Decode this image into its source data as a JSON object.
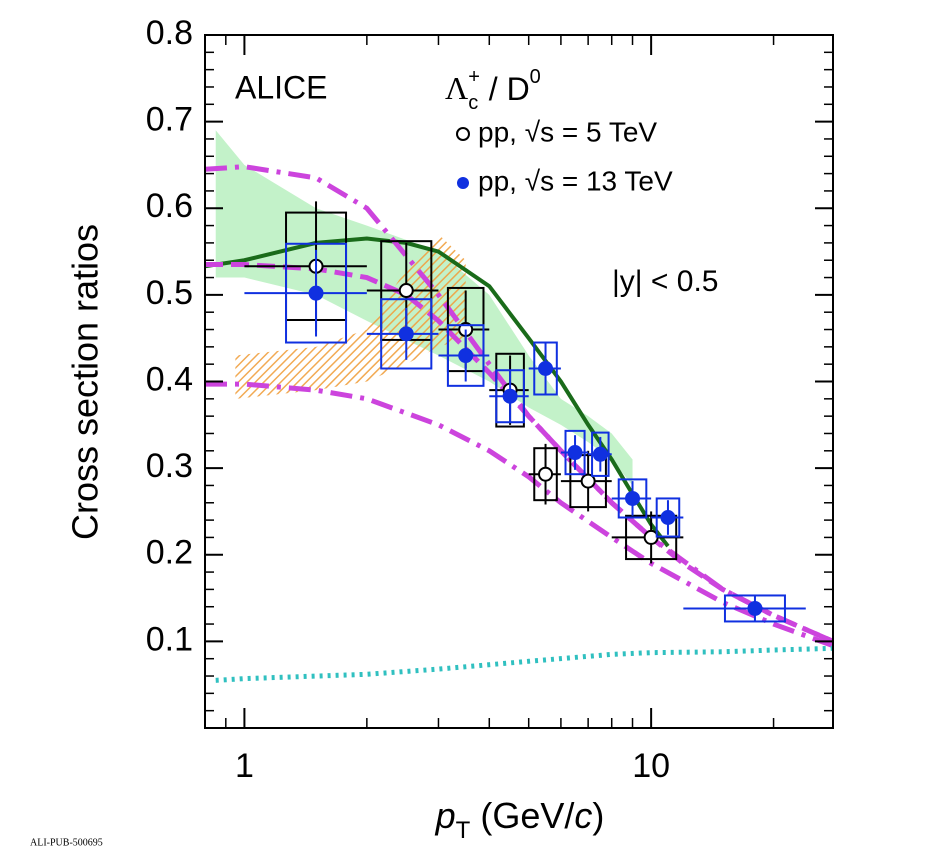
{
  "chart_data": {
    "type": "scatter",
    "annotations": {
      "experiment": "ALICE",
      "ratio": [
        "Λ",
        "c",
        "+",
        " / D",
        "0"
      ],
      "rapidity": "|y| < 0.5",
      "footer": "ALI-PUB-500695"
    },
    "xlabel": [
      "p",
      "T",
      " (GeV/",
      "c",
      ")"
    ],
    "ylabel": "Cross section ratios",
    "xlim": [
      0.8,
      28
    ],
    "xscale": "log",
    "xticks": [
      1,
      10
    ],
    "xminor_ticks": [
      0.8,
      0.9,
      2,
      3,
      4,
      5,
      6,
      7,
      8,
      9,
      20
    ],
    "ylim": [
      0,
      0.8
    ],
    "yticks": [
      0.1,
      0.2,
      0.3,
      0.4,
      0.5,
      0.6,
      0.7,
      0.8
    ],
    "series": [
      {
        "name": "pp, √s = 5 TeV",
        "color": "#000000",
        "marker": "open",
        "x": [
          1.5,
          2.5,
          3.5,
          4.5,
          5.5,
          7,
          10
        ],
        "xerr": [
          0.5,
          0.5,
          0.5,
          0.5,
          0.5,
          1,
          2
        ],
        "values": [
          0.533,
          0.505,
          0.46,
          0.39,
          0.293,
          0.285,
          0.22
        ],
        "stat": [
          0.075,
          0.055,
          0.045,
          0.04,
          0.035,
          0.035,
          0.03
        ],
        "syst": [
          0.062,
          0.057,
          0.048,
          0.042,
          0.03,
          0.03,
          0.025
        ]
      },
      {
        "name": "pp, √s = 13 TeV",
        "color": "#1030e0",
        "marker": "filled",
        "x": [
          1.5,
          2.5,
          3.5,
          4.5,
          5.5,
          6.5,
          7.5,
          9,
          11,
          18
        ],
        "xerr": [
          0.5,
          0.5,
          0.5,
          0.5,
          0.5,
          0.5,
          0.5,
          1,
          1,
          6
        ],
        "values": [
          0.502,
          0.455,
          0.43,
          0.383,
          0.415,
          0.318,
          0.316,
          0.265,
          0.243,
          0.138
        ],
        "stat": [
          0.05,
          0.03,
          0.03,
          0.03,
          0.03,
          0.02,
          0.02,
          0.02,
          0.02,
          0.015
        ],
        "syst": [
          0.057,
          0.04,
          0.035,
          0.03,
          0.03,
          0.025,
          0.025,
          0.022,
          0.022,
          0.015
        ]
      }
    ],
    "bands": [
      {
        "color": "#b8f0c0",
        "pattern": "solid",
        "x": [
          0.85,
          1,
          1.5,
          2,
          3,
          4,
          5,
          6,
          7,
          8,
          9
        ],
        "upper": [
          0.69,
          0.65,
          0.6,
          0.58,
          0.55,
          0.5,
          0.43,
          0.38,
          0.36,
          0.34,
          0.31
        ],
        "lower": [
          0.52,
          0.52,
          0.5,
          0.47,
          0.43,
          0.4,
          0.37,
          0.35,
          0.33,
          0.31,
          0.28
        ]
      },
      {
        "color": "#f0a040",
        "pattern": "hatch",
        "x": [
          0.95,
          1.5,
          2,
          2.5,
          3,
          3.5
        ],
        "upper": [
          0.43,
          0.44,
          0.46,
          0.53,
          0.57,
          0.54
        ],
        "lower": [
          0.38,
          0.39,
          0.4,
          0.42,
          0.44,
          0.45
        ]
      }
    ],
    "curves": [
      {
        "color": "#1a6b1a",
        "dash": "solid",
        "x": [
          0.8,
          1,
          1.5,
          2,
          2.5,
          3,
          4,
          5,
          6,
          7,
          8,
          9,
          10,
          11
        ],
        "values": [
          0.533,
          0.54,
          0.56,
          0.565,
          0.56,
          0.55,
          0.51,
          0.45,
          0.4,
          0.35,
          0.31,
          0.27,
          0.235,
          0.21
        ]
      },
      {
        "color": "#cc44dd",
        "dash": "dashdot",
        "x": [
          0.8,
          1,
          1.5,
          2,
          3,
          4,
          5,
          6,
          8,
          10,
          15,
          20,
          28
        ],
        "values": [
          0.645,
          0.648,
          0.635,
          0.6,
          0.5,
          0.42,
          0.36,
          0.32,
          0.26,
          0.22,
          0.16,
          0.13,
          0.1
        ]
      },
      {
        "color": "#cc44dd",
        "dash": "dashdot",
        "x": [
          0.8,
          1,
          1.5,
          2,
          3,
          4,
          5,
          6,
          8,
          10,
          15,
          20,
          28
        ],
        "values": [
          0.397,
          0.397,
          0.39,
          0.38,
          0.35,
          0.32,
          0.29,
          0.26,
          0.22,
          0.19,
          0.145,
          0.12,
          0.095
        ]
      },
      {
        "color": "#cc44dd",
        "dash": "dashed",
        "x": [
          0.8,
          1,
          1.5,
          2,
          2.5,
          3,
          4,
          5,
          6,
          8,
          10,
          12,
          15,
          20,
          28
        ],
        "values": [
          0.535,
          0.535,
          0.53,
          0.52,
          0.5,
          0.47,
          0.41,
          0.36,
          0.32,
          0.26,
          0.22,
          0.19,
          0.16,
          0.13,
          0.1
        ]
      },
      {
        "color": "#30c0c0",
        "dash": "dotted",
        "x": [
          0.85,
          1,
          2,
          3,
          5,
          8,
          10,
          15,
          20,
          28
        ],
        "values": [
          0.055,
          0.057,
          0.062,
          0.068,
          0.077,
          0.085,
          0.087,
          0.088,
          0.09,
          0.092
        ]
      }
    ]
  }
}
